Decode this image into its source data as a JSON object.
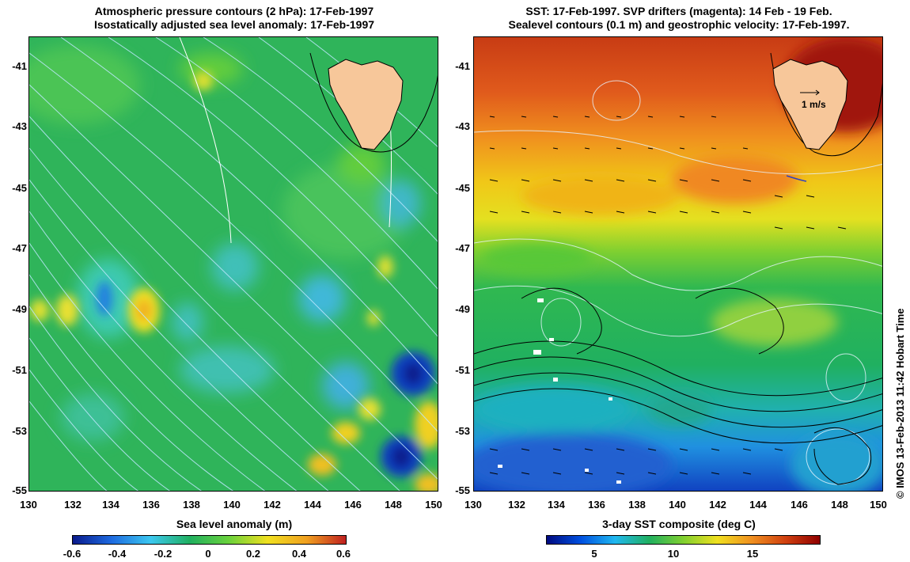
{
  "left_panel": {
    "title_line1": "Atmospheric pressure contours (2 hPa): 17-Feb-1997",
    "title_line2": "Isostatically adjusted sea level anomaly: 17-Feb-1997",
    "colorbar": {
      "label": "Sea level anomaly (m)",
      "ticks": [
        "-0.6",
        "-0.4",
        "-0.2",
        "0",
        "0.2",
        "0.4",
        "0.6"
      ],
      "colors": [
        "#0a1a8c",
        "#1e6be0",
        "#3cc8f0",
        "#20b060",
        "#6ad23c",
        "#f0e020",
        "#f0a020",
        "#c02020"
      ]
    }
  },
  "right_panel": {
    "title_line1": "SST: 17-Feb-1997. SVP drifters (magenta): 14 Feb - 19 Feb.",
    "title_line2": "Sealevel contours (0.1 m) and geostrophic velocity: 17-Feb-1997.",
    "velocity_scale_label": "1 m/s",
    "colorbar": {
      "label": "3-day SST composite (deg C)",
      "ticks": [
        "5",
        "10",
        "15"
      ],
      "colors": [
        "#000a80",
        "#0050e0",
        "#20b8f0",
        "#20b060",
        "#80d030",
        "#f0e020",
        "#f09020",
        "#d04010",
        "#900000"
      ]
    }
  },
  "axes": {
    "x_ticks": [
      "130",
      "132",
      "134",
      "136",
      "138",
      "140",
      "142",
      "144",
      "146",
      "148",
      "150"
    ],
    "y_ticks": [
      "-41",
      "-43",
      "-45",
      "-47",
      "-49",
      "-51",
      "-53",
      "-55"
    ]
  },
  "credit": "© IMOS 13-Feb-2013 11:42 Hobart Time"
}
